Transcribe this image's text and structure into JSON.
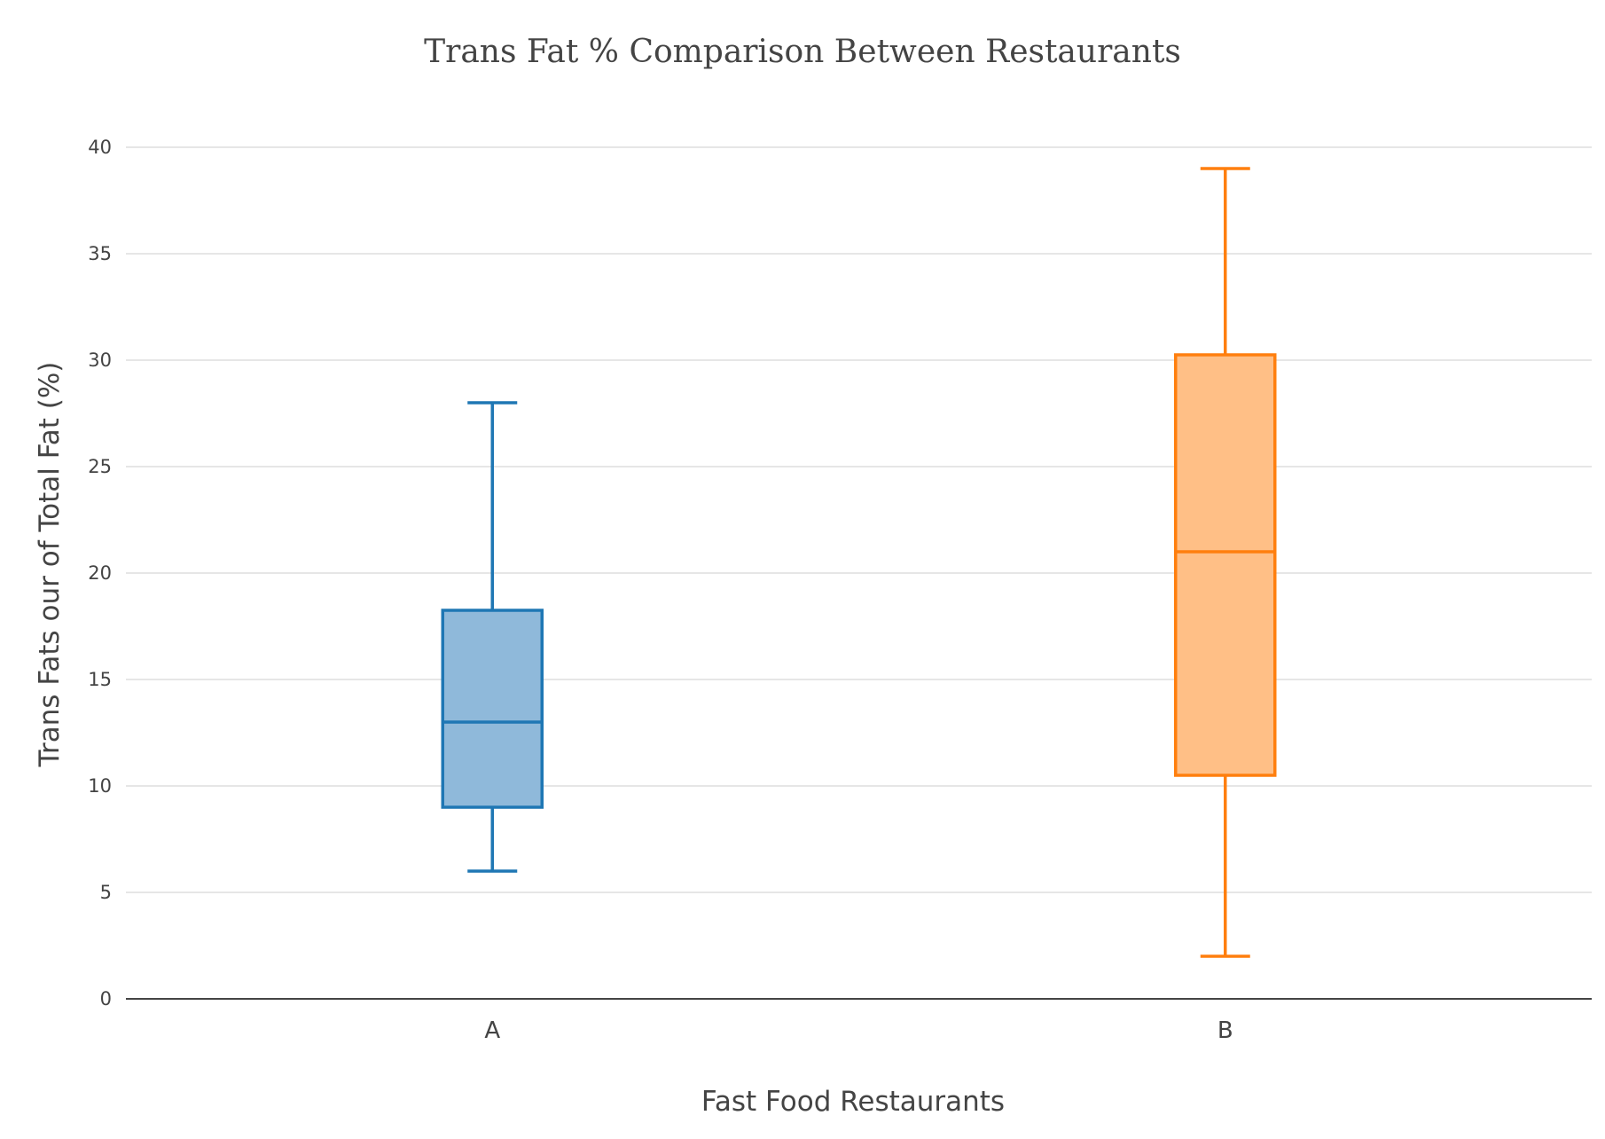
{
  "chart_data": {
    "type": "box",
    "title": "Trans Fat % Comparison Between Restaurants",
    "xlabel": "Fast Food Restaurants",
    "ylabel": "Trans Fats our of Total Fat (%)",
    "ylim": [
      0,
      40
    ],
    "yticks": [
      0,
      5,
      10,
      15,
      20,
      25,
      30,
      35,
      40
    ],
    "grid": true,
    "categories": [
      "A",
      "B"
    ],
    "series": [
      {
        "category": "A",
        "min": 6,
        "q1": 9,
        "median": 13,
        "q3": 18.25,
        "max": 28,
        "color": "#1f77b4",
        "fill": "#8fb9da"
      },
      {
        "category": "B",
        "min": 2,
        "q1": 10.5,
        "median": 21,
        "q3": 30.25,
        "max": 39,
        "color": "#ff7f0e",
        "fill": "#ffbf86"
      }
    ]
  }
}
